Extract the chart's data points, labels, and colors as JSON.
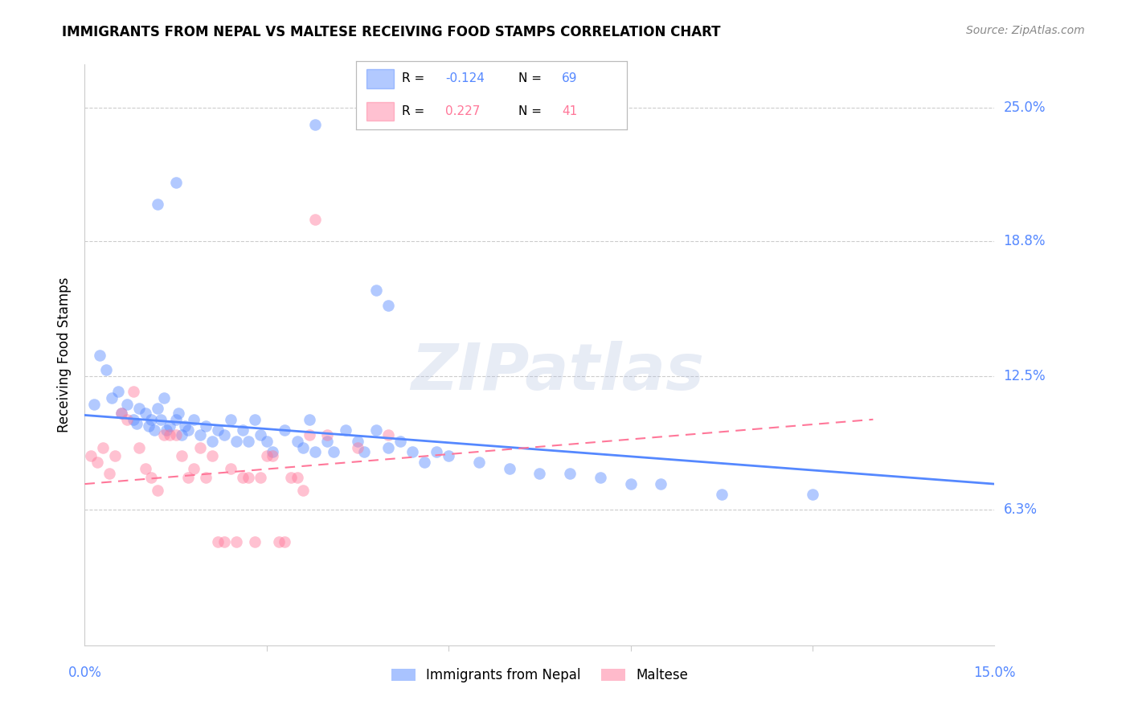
{
  "title": "IMMIGRANTS FROM NEPAL VS MALTESE RECEIVING FOOD STAMPS CORRELATION CHART",
  "source": "Source: ZipAtlas.com",
  "ylabel": "Receiving Food Stamps",
  "ytick_labels": [
    "6.3%",
    "12.5%",
    "18.8%",
    "25.0%"
  ],
  "ytick_values": [
    6.3,
    12.5,
    18.8,
    25.0
  ],
  "xlim": [
    0.0,
    15.0
  ],
  "ylim": [
    0.0,
    27.0
  ],
  "watermark_text": "ZIPatlas",
  "nepal_scatter": [
    [
      0.15,
      11.2
    ],
    [
      0.25,
      13.5
    ],
    [
      0.35,
      12.8
    ],
    [
      0.45,
      11.5
    ],
    [
      0.55,
      11.8
    ],
    [
      0.6,
      10.8
    ],
    [
      0.7,
      11.2
    ],
    [
      0.8,
      10.5
    ],
    [
      0.85,
      10.3
    ],
    [
      0.9,
      11.0
    ],
    [
      1.0,
      10.8
    ],
    [
      1.05,
      10.2
    ],
    [
      1.1,
      10.5
    ],
    [
      1.15,
      10.0
    ],
    [
      1.2,
      11.0
    ],
    [
      1.25,
      10.5
    ],
    [
      1.3,
      11.5
    ],
    [
      1.35,
      10.0
    ],
    [
      1.4,
      10.2
    ],
    [
      1.5,
      10.5
    ],
    [
      1.55,
      10.8
    ],
    [
      1.6,
      9.8
    ],
    [
      1.65,
      10.2
    ],
    [
      1.7,
      10.0
    ],
    [
      1.8,
      10.5
    ],
    [
      1.9,
      9.8
    ],
    [
      2.0,
      10.2
    ],
    [
      2.1,
      9.5
    ],
    [
      2.2,
      10.0
    ],
    [
      2.3,
      9.8
    ],
    [
      2.4,
      10.5
    ],
    [
      2.5,
      9.5
    ],
    [
      2.6,
      10.0
    ],
    [
      2.7,
      9.5
    ],
    [
      2.8,
      10.5
    ],
    [
      2.9,
      9.8
    ],
    [
      3.0,
      9.5
    ],
    [
      3.1,
      9.0
    ],
    [
      3.3,
      10.0
    ],
    [
      3.5,
      9.5
    ],
    [
      3.6,
      9.2
    ],
    [
      3.7,
      10.5
    ],
    [
      3.8,
      9.0
    ],
    [
      4.0,
      9.5
    ],
    [
      4.1,
      9.0
    ],
    [
      4.3,
      10.0
    ],
    [
      4.5,
      9.5
    ],
    [
      4.6,
      9.0
    ],
    [
      4.8,
      10.0
    ],
    [
      5.0,
      9.2
    ],
    [
      5.2,
      9.5
    ],
    [
      5.4,
      9.0
    ],
    [
      5.6,
      8.5
    ],
    [
      5.8,
      9.0
    ],
    [
      6.0,
      8.8
    ],
    [
      6.5,
      8.5
    ],
    [
      7.0,
      8.2
    ],
    [
      7.5,
      8.0
    ],
    [
      8.0,
      8.0
    ],
    [
      8.5,
      7.8
    ],
    [
      9.0,
      7.5
    ],
    [
      9.5,
      7.5
    ],
    [
      10.5,
      7.0
    ],
    [
      12.0,
      7.0
    ],
    [
      3.8,
      24.2
    ],
    [
      1.5,
      21.5
    ],
    [
      1.2,
      20.5
    ],
    [
      4.8,
      16.5
    ],
    [
      5.0,
      15.8
    ]
  ],
  "maltese_scatter": [
    [
      0.1,
      8.8
    ],
    [
      0.2,
      8.5
    ],
    [
      0.3,
      9.2
    ],
    [
      0.4,
      8.0
    ],
    [
      0.5,
      8.8
    ],
    [
      0.6,
      10.8
    ],
    [
      0.7,
      10.5
    ],
    [
      0.8,
      11.8
    ],
    [
      0.9,
      9.2
    ],
    [
      1.0,
      8.2
    ],
    [
      1.1,
      7.8
    ],
    [
      1.2,
      7.2
    ],
    [
      1.3,
      9.8
    ],
    [
      1.4,
      9.8
    ],
    [
      1.5,
      9.8
    ],
    [
      1.6,
      8.8
    ],
    [
      1.7,
      7.8
    ],
    [
      1.8,
      8.2
    ],
    [
      1.9,
      9.2
    ],
    [
      2.0,
      7.8
    ],
    [
      2.1,
      8.8
    ],
    [
      2.2,
      4.8
    ],
    [
      2.3,
      4.8
    ],
    [
      2.4,
      8.2
    ],
    [
      2.5,
      4.8
    ],
    [
      2.6,
      7.8
    ],
    [
      2.7,
      7.8
    ],
    [
      2.8,
      4.8
    ],
    [
      2.9,
      7.8
    ],
    [
      3.0,
      8.8
    ],
    [
      3.1,
      8.8
    ],
    [
      3.2,
      4.8
    ],
    [
      3.3,
      4.8
    ],
    [
      3.4,
      7.8
    ],
    [
      3.5,
      7.8
    ],
    [
      3.6,
      7.2
    ],
    [
      3.7,
      9.8
    ],
    [
      3.8,
      19.8
    ],
    [
      4.0,
      9.8
    ],
    [
      4.5,
      9.2
    ],
    [
      5.0,
      9.8
    ]
  ],
  "nepal_line": {
    "x_start": 0.0,
    "y_start": 10.7,
    "x_end": 15.0,
    "y_end": 7.5
  },
  "maltese_line": {
    "x_start": 0.0,
    "y_start": 7.5,
    "x_end": 13.0,
    "y_end": 10.5
  },
  "nepal_color": "#5588ff",
  "maltese_color": "#ff7799",
  "scatter_alpha": 0.45,
  "scatter_size": 110,
  "grid_color": "#cccccc",
  "background_color": "#ffffff",
  "title_fontsize": 12,
  "tick_label_color": "#5588ff",
  "legend_R1": "-0.124",
  "legend_N1": "69",
  "legend_R2": "0.227",
  "legend_N2": "41",
  "legend_label1": "Immigrants from Nepal",
  "legend_label2": "Maltese"
}
